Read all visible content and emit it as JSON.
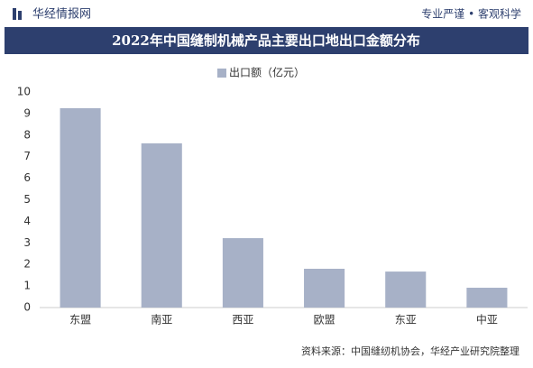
{
  "header": {
    "brand": "华经情报网",
    "slogan": "专业严谨 • 客观科学"
  },
  "chart_data": {
    "type": "bar",
    "title": "2022年中国缝制机械产品主要出口地出口金额分布",
    "categories": [
      "东盟",
      "南亚",
      "西亚",
      "欧盟",
      "东亚",
      "中亚"
    ],
    "series": [
      {
        "name": "出口额（亿元）",
        "color": "#a7b1c7",
        "values": [
          9.25,
          7.62,
          3.22,
          1.8,
          1.67,
          0.92
        ]
      }
    ],
    "ylim": [
      0,
      10
    ],
    "yticks": [
      0,
      1,
      2,
      3,
      4,
      5,
      6,
      7,
      8,
      9,
      10
    ],
    "grid": false
  },
  "footer": {
    "source": "资料来源：中国缝纫机协会，华经产业研究院整理"
  }
}
